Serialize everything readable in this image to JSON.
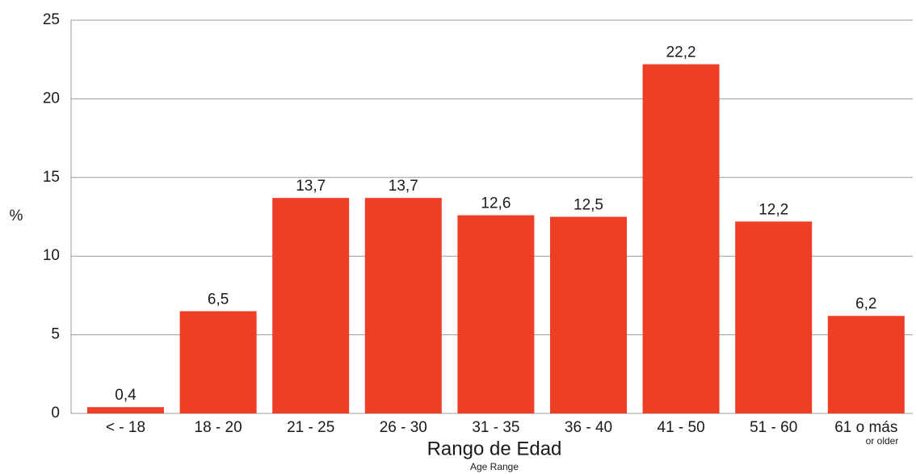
{
  "chart_data": {
    "type": "bar",
    "categories": [
      "< - 18",
      "18 - 20",
      "21 - 25",
      "26 - 30",
      "31 - 35",
      "36 - 40",
      "41 - 50",
      "51 - 60",
      "61 o más"
    ],
    "values": [
      0.4,
      6.5,
      13.7,
      13.7,
      12.6,
      12.5,
      22.2,
      12.2,
      6.2
    ],
    "value_labels": [
      "0,4",
      "6,5",
      "13,7",
      "13,7",
      "12,6",
      "12,5",
      "22,2",
      "12,2",
      "6,2"
    ],
    "color": "#ef3e26",
    "ylabel": "%",
    "xlabel": "Rango de Edad",
    "xlabel_subtitle": "Age Range",
    "annotations": [
      "or older"
    ],
    "ylim": [
      0,
      25
    ],
    "yticks": [
      0,
      5,
      10,
      15,
      20,
      25
    ],
    "grid": true
  }
}
